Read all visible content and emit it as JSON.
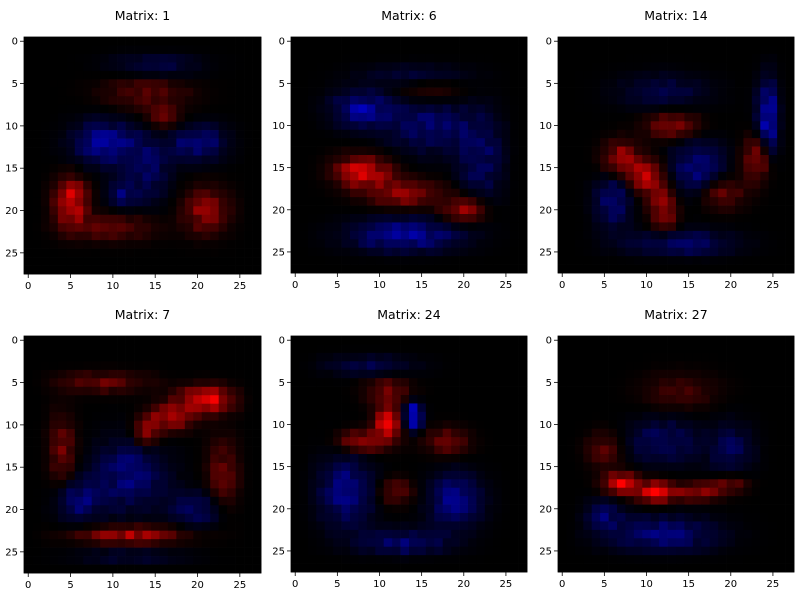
{
  "chart_data": [
    {
      "type": "heatmap",
      "title": "Matrix: 1",
      "grid_size": 28,
      "xticks": [
        0,
        5,
        10,
        15,
        20,
        25
      ],
      "yticks": [
        0,
        5,
        10,
        15,
        20,
        25
      ],
      "xlim": [
        -0.5,
        27.5
      ],
      "ylim": [
        27.5,
        -0.5
      ],
      "colors": {
        "positive": "#ff0000",
        "negative": "#0000ff",
        "zero": "#000000"
      },
      "blobs": [
        {
          "x": 5,
          "y": 19,
          "rx": 1.8,
          "ry": 2.6,
          "value": 0.9
        },
        {
          "x": 21,
          "y": 20,
          "rx": 2.5,
          "ry": 2.5,
          "value": 0.55
        },
        {
          "x": 10,
          "y": 22,
          "rx": 5.0,
          "ry": 1.5,
          "value": 0.35
        },
        {
          "x": 14,
          "y": 6,
          "rx": 5.0,
          "ry": 2.0,
          "value": 0.3
        },
        {
          "x": 16,
          "y": 9,
          "rx": 2.0,
          "ry": 1.5,
          "value": 0.35
        },
        {
          "x": 9,
          "y": 12,
          "rx": 3.5,
          "ry": 2.5,
          "value": -0.55
        },
        {
          "x": 20,
          "y": 12,
          "rx": 3.0,
          "ry": 2.0,
          "value": -0.5
        },
        {
          "x": 14,
          "y": 15,
          "rx": 2.5,
          "ry": 4.0,
          "value": -0.35
        },
        {
          "x": 11,
          "y": 18,
          "rx": 1.5,
          "ry": 1.5,
          "value": -0.4
        },
        {
          "x": 15,
          "y": 3,
          "rx": 5.0,
          "ry": 1.5,
          "value": -0.25
        }
      ]
    },
    {
      "type": "heatmap",
      "title": "Matrix: 6",
      "grid_size": 28,
      "xticks": [
        0,
        5,
        10,
        15,
        20,
        25
      ],
      "yticks": [
        0,
        5,
        10,
        15,
        20,
        25
      ],
      "xlim": [
        -0.5,
        27.5
      ],
      "ylim": [
        27.5,
        -0.5
      ],
      "colors": {
        "positive": "#ff0000",
        "negative": "#0000ff",
        "zero": "#000000"
      },
      "blobs": [
        {
          "x": 8,
          "y": 15.5,
          "rx": 3.0,
          "ry": 1.8,
          "value": 0.85
        },
        {
          "x": 13,
          "y": 18,
          "rx": 4.0,
          "ry": 1.5,
          "value": 0.6
        },
        {
          "x": 20,
          "y": 20,
          "rx": 2.5,
          "ry": 1.5,
          "value": 0.55
        },
        {
          "x": 16,
          "y": 6,
          "rx": 4.0,
          "ry": 1.5,
          "value": 0.2
        },
        {
          "x": 8,
          "y": 8,
          "rx": 3.5,
          "ry": 2.0,
          "value": -0.55
        },
        {
          "x": 16,
          "y": 10,
          "rx": 5.0,
          "ry": 3.0,
          "value": -0.4
        },
        {
          "x": 13,
          "y": 23,
          "rx": 6.0,
          "ry": 1.8,
          "value": -0.6
        },
        {
          "x": 22,
          "y": 14,
          "rx": 2.5,
          "ry": 5.0,
          "value": -0.35
        },
        {
          "x": 14,
          "y": 4,
          "rx": 6.0,
          "ry": 1.2,
          "value": -0.2
        }
      ]
    },
    {
      "type": "heatmap",
      "title": "Matrix: 14",
      "grid_size": 28,
      "xticks": [
        0,
        5,
        10,
        15,
        20,
        25
      ],
      "yticks": [
        0,
        5,
        10,
        15,
        20,
        25
      ],
      "xlim": [
        -0.5,
        27.5
      ],
      "ylim": [
        27.5,
        -0.5
      ],
      "colors": {
        "positive": "#ff0000",
        "negative": "#0000ff",
        "zero": "#000000"
      },
      "blobs": [
        {
          "x": 7,
          "y": 14,
          "rx": 2.0,
          "ry": 2.0,
          "value": 0.6
        },
        {
          "x": 10,
          "y": 16,
          "rx": 2.0,
          "ry": 2.0,
          "value": 0.65
        },
        {
          "x": 12,
          "y": 20,
          "rx": 1.5,
          "ry": 2.5,
          "value": 0.6
        },
        {
          "x": 13,
          "y": 10,
          "rx": 3.0,
          "ry": 1.5,
          "value": 0.5
        },
        {
          "x": 23,
          "y": 14,
          "rx": 1.5,
          "ry": 2.5,
          "value": 0.55
        },
        {
          "x": 19,
          "y": 18,
          "rx": 2.5,
          "ry": 1.8,
          "value": 0.4
        },
        {
          "x": 24.5,
          "y": 9,
          "rx": 1.3,
          "ry": 4.0,
          "value": -0.7
        },
        {
          "x": 6,
          "y": 19,
          "rx": 2.0,
          "ry": 3.0,
          "value": -0.45
        },
        {
          "x": 16,
          "y": 15,
          "rx": 3.0,
          "ry": 3.0,
          "value": -0.45
        },
        {
          "x": 14,
          "y": 24,
          "rx": 6.0,
          "ry": 1.5,
          "value": -0.4
        },
        {
          "x": 12,
          "y": 6,
          "rx": 5.0,
          "ry": 2.0,
          "value": -0.25
        }
      ]
    },
    {
      "type": "heatmap",
      "title": "Matrix: 7",
      "grid_size": 28,
      "xticks": [
        0,
        5,
        10,
        15,
        20,
        25
      ],
      "yticks": [
        0,
        5,
        10,
        15,
        20,
        25
      ],
      "xlim": [
        -0.5,
        27.5
      ],
      "ylim": [
        27.5,
        -0.5
      ],
      "colors": {
        "positive": "#ff0000",
        "negative": "#0000ff",
        "zero": "#000000"
      },
      "blobs": [
        {
          "x": 21,
          "y": 7,
          "rx": 3.0,
          "ry": 1.5,
          "value": 0.85
        },
        {
          "x": 17,
          "y": 9,
          "rx": 2.5,
          "ry": 1.5,
          "value": 0.75
        },
        {
          "x": 14,
          "y": 11,
          "rx": 1.5,
          "ry": 1.5,
          "value": 0.55
        },
        {
          "x": 12,
          "y": 23,
          "rx": 6.0,
          "ry": 1.0,
          "value": 0.6
        },
        {
          "x": 4,
          "y": 13,
          "rx": 1.5,
          "ry": 4.0,
          "value": 0.4
        },
        {
          "x": 9,
          "y": 5,
          "rx": 5.0,
          "ry": 1.2,
          "value": 0.35
        },
        {
          "x": 23,
          "y": 16,
          "rx": 1.8,
          "ry": 4.0,
          "value": 0.35
        },
        {
          "x": 12,
          "y": 16,
          "rx": 4.0,
          "ry": 4.0,
          "value": -0.45
        },
        {
          "x": 6,
          "y": 19,
          "rx": 2.5,
          "ry": 2.5,
          "value": -0.4
        },
        {
          "x": 20,
          "y": 20,
          "rx": 3.0,
          "ry": 2.0,
          "value": -0.35
        },
        {
          "x": 12,
          "y": 26,
          "rx": 6.0,
          "ry": 1.0,
          "value": -0.3
        }
      ]
    },
    {
      "type": "heatmap",
      "title": "Matrix: 24",
      "grid_size": 28,
      "xticks": [
        0,
        5,
        10,
        15,
        20,
        25
      ],
      "yticks": [
        0,
        5,
        10,
        15,
        20,
        25
      ],
      "xlim": [
        -0.5,
        27.5
      ],
      "ylim": [
        27.5,
        -0.5
      ],
      "colors": {
        "positive": "#ff0000",
        "negative": "#0000ff",
        "zero": "#000000"
      },
      "blobs": [
        {
          "x": 11,
          "y": 10,
          "rx": 1.5,
          "ry": 2.0,
          "value": 0.85
        },
        {
          "x": 8,
          "y": 12,
          "rx": 2.5,
          "ry": 1.2,
          "value": 0.65
        },
        {
          "x": 11,
          "y": 6,
          "rx": 2.5,
          "ry": 1.5,
          "value": 0.4
        },
        {
          "x": 18,
          "y": 12,
          "rx": 2.5,
          "ry": 1.5,
          "value": 0.4
        },
        {
          "x": 12,
          "y": 18,
          "rx": 2.0,
          "ry": 1.5,
          "value": 0.35
        },
        {
          "x": 14,
          "y": 9,
          "rx": 1.0,
          "ry": 1.5,
          "value": -0.9
        },
        {
          "x": 6,
          "y": 18,
          "rx": 3.0,
          "ry": 4.0,
          "value": -0.5
        },
        {
          "x": 19,
          "y": 19,
          "rx": 3.0,
          "ry": 3.0,
          "value": -0.5
        },
        {
          "x": 13,
          "y": 24,
          "rx": 5.0,
          "ry": 1.5,
          "value": -0.4
        },
        {
          "x": 9,
          "y": 3,
          "rx": 5.0,
          "ry": 1.2,
          "value": -0.25
        }
      ]
    },
    {
      "type": "heatmap",
      "title": "Matrix: 27",
      "grid_size": 28,
      "xticks": [
        0,
        5,
        10,
        15,
        20,
        25
      ],
      "yticks": [
        0,
        5,
        10,
        15,
        20,
        25
      ],
      "xlim": [
        -0.5,
        27.5
      ],
      "ylim": [
        27.5,
        -0.5
      ],
      "colors": {
        "positive": "#ff0000",
        "negative": "#0000ff",
        "zero": "#000000"
      },
      "blobs": [
        {
          "x": 7,
          "y": 17,
          "rx": 2.0,
          "ry": 1.2,
          "value": 0.9
        },
        {
          "x": 11,
          "y": 18,
          "rx": 2.0,
          "ry": 1.2,
          "value": 0.95
        },
        {
          "x": 16,
          "y": 18,
          "rx": 3.0,
          "ry": 1.0,
          "value": 0.55
        },
        {
          "x": 20,
          "y": 17,
          "rx": 2.0,
          "ry": 1.0,
          "value": 0.35
        },
        {
          "x": 14,
          "y": 6,
          "rx": 4.0,
          "ry": 2.0,
          "value": 0.25
        },
        {
          "x": 5,
          "y": 13,
          "rx": 2.0,
          "ry": 2.0,
          "value": 0.3
        },
        {
          "x": 12,
          "y": 23,
          "rx": 6.0,
          "ry": 2.0,
          "value": -0.45
        },
        {
          "x": 12,
          "y": 12,
          "rx": 4.0,
          "ry": 2.5,
          "value": -0.35
        },
        {
          "x": 20,
          "y": 13,
          "rx": 2.5,
          "ry": 3.0,
          "value": -0.3
        },
        {
          "x": 5,
          "y": 21,
          "rx": 2.0,
          "ry": 2.0,
          "value": -0.35
        }
      ]
    }
  ]
}
